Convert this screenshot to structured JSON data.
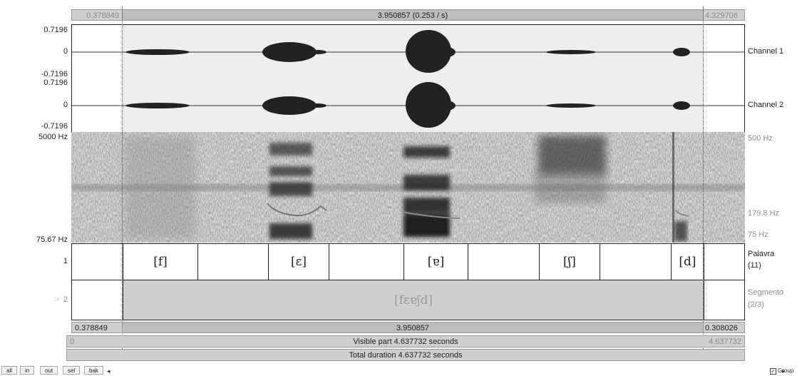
{
  "top_bar": {
    "left_value": "0.378849",
    "center_value": "3.950857 (0.253 / s)",
    "right_value": "4.329706"
  },
  "channel1": {
    "top_label": "0.7196",
    "zero_label": "0",
    "bottom_label": "-0.7196",
    "name": "Channel 1"
  },
  "channel2": {
    "top_label": "0.7196",
    "zero_label": "0",
    "bottom_label": "-0.7196",
    "name": "Channel 2"
  },
  "spectrogram": {
    "top_left": "5000 Hz",
    "bottom_left": "75.67 Hz",
    "top_right": "500 Hz",
    "mid_right": "179.8 Hz",
    "bottom_right": "75 Hz"
  },
  "tier1": {
    "number": "1",
    "name": "Palavra",
    "count": "(11)",
    "segments": [
      "",
      "[f]",
      "",
      "[ɛ]",
      "",
      "[ɐ]",
      "",
      "[ʃ]",
      "",
      "[d]",
      ""
    ]
  },
  "tier2": {
    "pointer": "☞",
    "number": "2",
    "name": "Segmento",
    "count": "(2/3)",
    "segments": [
      "",
      "[fɛɐʃd]",
      ""
    ]
  },
  "bottom_bars": {
    "row1_left": "0.378849",
    "row1_center": "3.950857",
    "row1_right": "0.308026",
    "row2_left": "0",
    "row2_center": "Visible part 4.637732 seconds",
    "row2_right": "4.637732",
    "row3_center": "Total duration 4.637732 seconds"
  },
  "toolbar": {
    "buttons": [
      "all",
      "in",
      "out",
      "sel",
      "bak"
    ],
    "scroll_left_icon": "triangle-left-icon",
    "scroll_right_icon": "triangle-right-icon",
    "group_label": "Group",
    "group_checked": true
  }
}
